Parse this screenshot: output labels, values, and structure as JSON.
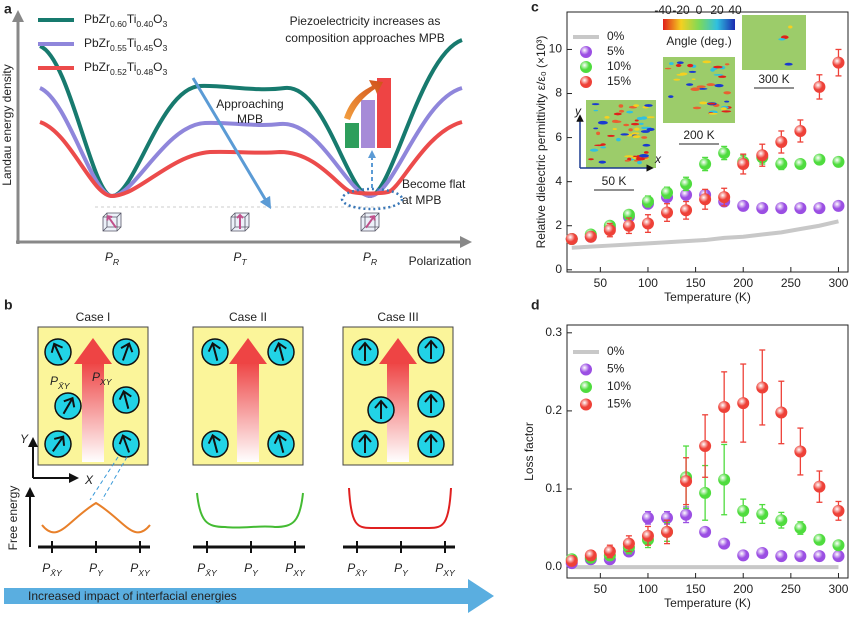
{
  "panel_a": {
    "label": "a",
    "y_label": "Landau energy density",
    "x_label": "Polarization",
    "legend": [
      {
        "name": "PbZr0.60Ti0.40O3",
        "color": "#177a6e"
      },
      {
        "name": "PbZr0.55Ti0.45O3",
        "color": "#8f86db"
      },
      {
        "name": "PbZr0.52Ti0.48O3",
        "color": "#ec4b4b"
      }
    ],
    "positions": [
      "PR",
      "PT",
      "PR"
    ],
    "approaching": [
      "Approaching",
      "MPB"
    ],
    "piezo": [
      "Piezoelectricity increases as",
      "composition approaches MPB"
    ],
    "flat": [
      "Become flat",
      "at MPB"
    ]
  },
  "panel_b": {
    "label": "b",
    "inner_labels": [
      "PX̄Y",
      "PXY"
    ],
    "axes": [
      "Y",
      "X"
    ],
    "y_label": "Free energy",
    "cases": [
      {
        "title": "Case I",
        "positions": [
          "PX̄Y",
          "PY",
          "PXY"
        ]
      },
      {
        "title": "Case II",
        "positions": [
          "PX̄Y",
          "PY",
          "PXY"
        ]
      },
      {
        "title": "Case III",
        "positions": [
          "PX̄Y",
          "PY",
          "PXY"
        ]
      }
    ],
    "arrow_text": "Increased impact of interfacial energies"
  },
  "chart_data": [
    {
      "type": "scatter",
      "label": "c",
      "y_label": "Relative dielectric permittivity ε/ε₀ (×10³)",
      "x_label": "Temperature (K)",
      "xlim": [
        15,
        310
      ],
      "xticks": [
        50,
        100,
        150,
        200,
        250,
        300
      ],
      "ylim": [
        -0.1,
        11.7
      ],
      "yticks": [
        0,
        2,
        4,
        6,
        8,
        10
      ],
      "grid": false,
      "legend": "upper left",
      "x": [
        20,
        40,
        60,
        80,
        100,
        120,
        140,
        160,
        180,
        200,
        220,
        240,
        260,
        280,
        300
      ],
      "series": [
        {
          "name": "0%",
          "color": "#c8c8c8",
          "marker": "line",
          "values": [
            1.0,
            1.05,
            1.1,
            1.15,
            1.2,
            1.25,
            1.3,
            1.35,
            1.45,
            1.5,
            1.6,
            1.7,
            1.85,
            2.0,
            2.2
          ]
        },
        {
          "name": "5%",
          "color": "#9b4fe3",
          "marker": "circle",
          "values": [
            1.4,
            1.5,
            1.9,
            2.4,
            3.0,
            3.3,
            3.4,
            3.4,
            3.1,
            2.9,
            2.8,
            2.8,
            2.8,
            2.8,
            2.9
          ],
          "errors": [
            0.1,
            0.1,
            0.15,
            0.15,
            0.2,
            0.2,
            0.2,
            0.15,
            0.15,
            0.1,
            0.1,
            0.1,
            0.1,
            0.1,
            0.1
          ]
        },
        {
          "name": "10%",
          "color": "#4fdc3e",
          "marker": "circle",
          "values": [
            1.4,
            1.6,
            2.0,
            2.5,
            3.1,
            3.5,
            3.9,
            4.8,
            5.3,
            4.9,
            5.1,
            4.8,
            4.8,
            5.0,
            4.9
          ],
          "errors": [
            0.1,
            0.15,
            0.15,
            0.2,
            0.25,
            0.25,
            0.3,
            0.3,
            0.3,
            0.3,
            0.3,
            0.25,
            0.2,
            0.2,
            0.2
          ]
        },
        {
          "name": "15%",
          "color": "#ee4138",
          "marker": "circle",
          "values": [
            1.4,
            1.5,
            1.8,
            2.0,
            2.1,
            2.6,
            2.7,
            3.2,
            3.3,
            4.8,
            5.2,
            5.8,
            6.3,
            8.3,
            9.4
          ],
          "errors": [
            0.15,
            0.2,
            0.3,
            0.35,
            0.4,
            0.4,
            0.4,
            0.45,
            0.4,
            0.45,
            0.5,
            0.5,
            0.5,
            0.55,
            0.6
          ]
        }
      ],
      "inset_labels": [
        "50 K",
        "200 K",
        "300 K"
      ],
      "inset_axes": [
        "x",
        "y"
      ],
      "colorbar_ticks": [
        -40,
        -20,
        0,
        20,
        40
      ],
      "colorbar_label": "Angle (deg.)"
    },
    {
      "type": "scatter",
      "label": "d",
      "y_label": "Loss factor",
      "x_label": "Temperature (K)",
      "xlim": [
        15,
        310
      ],
      "xticks": [
        50,
        100,
        150,
        200,
        250,
        300
      ],
      "ylim": [
        -0.014,
        0.31
      ],
      "yticks": [
        {
          "value": 0,
          "label": "0.0"
        },
        0.1,
        0.2,
        0.3
      ],
      "grid": false,
      "legend": "upper left",
      "x": [
        20,
        40,
        60,
        80,
        100,
        120,
        140,
        160,
        180,
        200,
        220,
        240,
        260,
        280,
        300
      ],
      "series": [
        {
          "name": "0%",
          "color": "#c8c8c8",
          "marker": "line",
          "values": [
            0,
            0,
            0,
            0,
            0,
            0,
            0,
            0,
            0,
            0,
            0,
            0,
            0,
            0,
            0
          ]
        },
        {
          "name": "5%",
          "color": "#9b4fe3",
          "marker": "circle",
          "values": [
            0.005,
            0.01,
            0.01,
            0.02,
            0.063,
            0.063,
            0.067,
            0.045,
            0.03,
            0.015,
            0.018,
            0.014,
            0.014,
            0.014,
            0.014
          ],
          "errors": [
            0.003,
            0.004,
            0.004,
            0.005,
            0.008,
            0.008,
            0.01,
            0.005,
            0.004,
            0.003,
            0.003,
            0.003,
            0.003,
            0.003,
            0.003
          ]
        },
        {
          "name": "10%",
          "color": "#4fdc3e",
          "marker": "circle",
          "values": [
            0.01,
            0.012,
            0.015,
            0.025,
            0.035,
            0.045,
            0.115,
            0.095,
            0.112,
            0.072,
            0.068,
            0.06,
            0.05,
            0.035,
            0.028
          ],
          "errors": [
            0.004,
            0.005,
            0.006,
            0.008,
            0.01,
            0.012,
            0.04,
            0.035,
            0.045,
            0.015,
            0.012,
            0.01,
            0.008,
            0.006,
            0.005
          ]
        },
        {
          "name": "15%",
          "color": "#ee4138",
          "marker": "circle",
          "values": [
            0.008,
            0.015,
            0.02,
            0.03,
            0.04,
            0.045,
            0.11,
            0.155,
            0.205,
            0.21,
            0.23,
            0.198,
            0.148,
            0.103,
            0.072
          ],
          "errors": [
            0.004,
            0.006,
            0.008,
            0.01,
            0.012,
            0.015,
            0.03,
            0.04,
            0.045,
            0.05,
            0.048,
            0.04,
            0.03,
            0.02,
            0.012
          ]
        }
      ]
    }
  ]
}
